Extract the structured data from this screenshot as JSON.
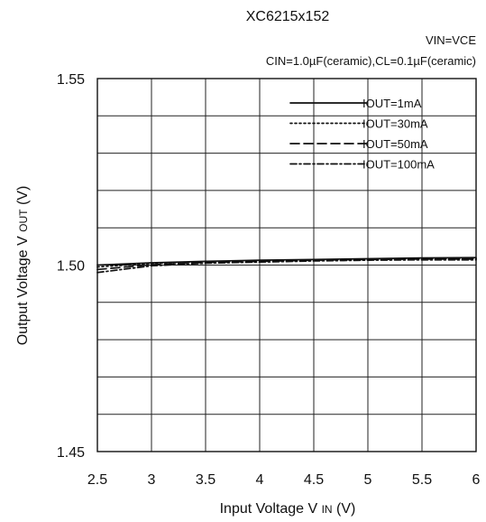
{
  "chart_data": {
    "type": "line",
    "title": "XC6215x152",
    "subtitle_line1": "VIN=VCE",
    "subtitle_line2": "CIN=1.0µF(ceramic),CL=0.1µF(ceramic)",
    "xlabel_main": "Input Voltage V",
    "xlabel_sub": "IN",
    "xlabel_unit": " (V)",
    "ylabel_main": "Output Voltage V",
    "ylabel_sub": " OUT",
    "ylabel_unit": " (V)",
    "xlim": [
      2.5,
      6
    ],
    "ylim": [
      1.45,
      1.55
    ],
    "x_ticks": [
      2.5,
      3,
      3.5,
      4,
      4.5,
      5,
      5.5,
      6
    ],
    "x_tick_labels": [
      "2.5",
      "3",
      "3.5",
      "4",
      "4.5",
      "5",
      "5.5",
      "6"
    ],
    "y_ticks": [
      1.45,
      1.5,
      1.55
    ],
    "y_tick_labels": [
      "1.45",
      "1.50",
      "1.55"
    ],
    "grid": true,
    "legend_position": "top-right",
    "series": [
      {
        "name": "IOUT=1mA",
        "style": "solid",
        "x": [
          2.5,
          3,
          3.5,
          4,
          4.5,
          5,
          5.5,
          6
        ],
        "y": [
          1.5,
          1.5006,
          1.501,
          1.5013,
          1.5015,
          1.5017,
          1.5019,
          1.502
        ]
      },
      {
        "name": "IOUT=30mA",
        "style": "dotted",
        "x": [
          2.5,
          3,
          3.5,
          4,
          4.5,
          5,
          5.5,
          6
        ],
        "y": [
          1.4995,
          1.5004,
          1.5009,
          1.5012,
          1.5014,
          1.5016,
          1.5017,
          1.5018
        ]
      },
      {
        "name": "IOUT=50mA",
        "style": "dashed",
        "x": [
          2.5,
          3,
          3.5,
          4,
          4.5,
          5,
          5.5,
          6
        ],
        "y": [
          1.4988,
          1.5001,
          1.5007,
          1.501,
          1.5013,
          1.5015,
          1.5016,
          1.5016
        ]
      },
      {
        "name": "IOUT=100mA",
        "style": "dashdot",
        "x": [
          2.5,
          3,
          3.5,
          4,
          4.5,
          5,
          5.5,
          6
        ],
        "y": [
          1.498,
          1.4998,
          1.5005,
          1.5008,
          1.5011,
          1.5013,
          1.5014,
          1.5014
        ]
      }
    ]
  }
}
